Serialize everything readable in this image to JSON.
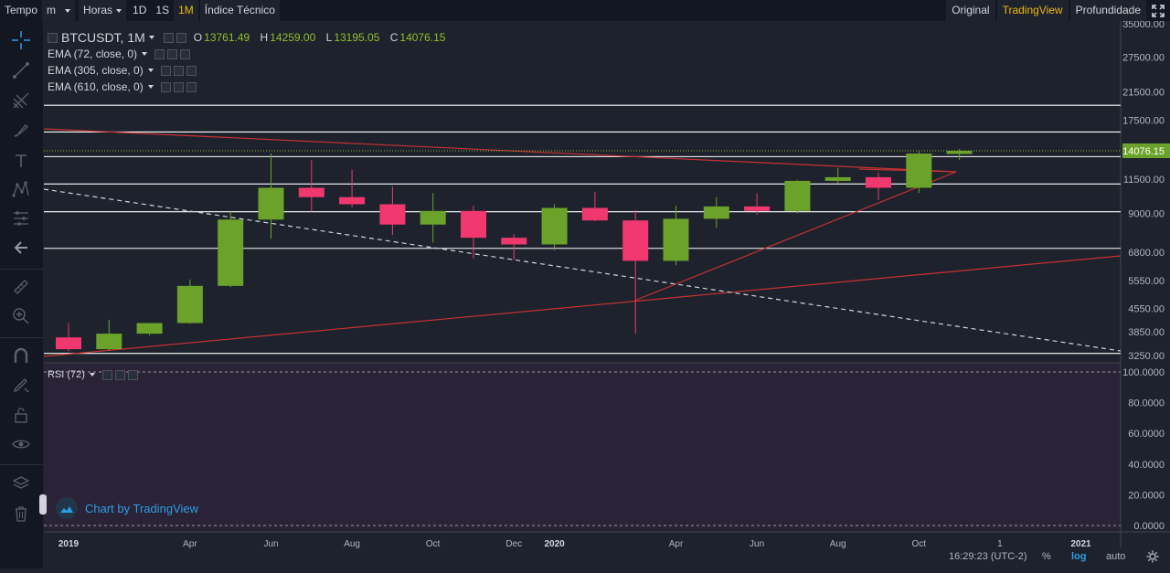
{
  "toolbar": {
    "tempo_label": "Tempo",
    "minutes_value": "m",
    "hours_value": "Horas",
    "intervals": [
      "1D",
      "1S",
      "1M"
    ],
    "active_interval": "1M",
    "indicators_label": "Índice Técnico",
    "views": [
      "Original",
      "TradingView",
      "Profundidade"
    ],
    "active_view": "TradingView"
  },
  "legend": {
    "symbol": "BTCUSDT, 1M",
    "open_label": "O",
    "open": "13761.49",
    "high_label": "H",
    "high": "14259.00",
    "low_label": "L",
    "low": "13195.05",
    "close_label": "C",
    "close": "14076.15",
    "ema1": "EMA (72, close, 0)",
    "ema2": "EMA (305, close, 0)",
    "ema3": "EMA (610, close, 0)",
    "rsi": "RSI (72)"
  },
  "price_axis": {
    "labels": [
      "35000.00",
      "27500.00",
      "21500.00",
      "17500.00",
      "14076.15",
      "11500.00",
      "9000.00",
      "6800.00",
      "5550.00",
      "4550.00",
      "3850.00",
      "3250.00"
    ],
    "current_price": "14076.15"
  },
  "rsi_axis": {
    "labels": [
      "100.0000",
      "80.0000",
      "60.0000",
      "40.0000",
      "20.0000",
      "0.0000"
    ]
  },
  "time_axis": {
    "labels": [
      "2019",
      "Apr",
      "Jun",
      "Aug",
      "Oct",
      "Dec",
      "2020",
      "Apr",
      "Jun",
      "Aug",
      "Oct",
      "1",
      "2021"
    ]
  },
  "status": {
    "clock": "16:29:23 (UTC-2)",
    "percent": "%",
    "log": "log",
    "auto": "auto"
  },
  "watermark": "Chart by TradingView",
  "colors": {
    "up": "#6ba32a",
    "down": "#f0386f",
    "accent": "#f0b90b",
    "trend": "#c93232"
  },
  "chart_data": {
    "type": "candlestick",
    "symbol": "BTCUSDT",
    "interval": "1M",
    "scale": "log",
    "candles": [
      {
        "month": "2019-01",
        "open": 3700,
        "high": 4100,
        "low": 3350,
        "close": 3400
      },
      {
        "month": "2019-02",
        "open": 3400,
        "high": 4200,
        "low": 3370,
        "close": 3800
      },
      {
        "month": "2019-03",
        "open": 3800,
        "high": 4100,
        "low": 3750,
        "close": 4100
      },
      {
        "month": "2019-04",
        "open": 4100,
        "high": 5600,
        "low": 4080,
        "close": 5350
      },
      {
        "month": "2019-05",
        "open": 5350,
        "high": 9100,
        "low": 5300,
        "close": 8600
      },
      {
        "month": "2019-06",
        "open": 8600,
        "high": 13800,
        "low": 7500,
        "close": 10800
      },
      {
        "month": "2019-07",
        "open": 10800,
        "high": 13200,
        "low": 9100,
        "close": 10100
      },
      {
        "month": "2019-08",
        "open": 10100,
        "high": 12300,
        "low": 9400,
        "close": 9600
      },
      {
        "month": "2019-09",
        "open": 9600,
        "high": 10900,
        "low": 7700,
        "close": 8300
      },
      {
        "month": "2019-10",
        "open": 8300,
        "high": 10400,
        "low": 7300,
        "close": 9150
      },
      {
        "month": "2019-11",
        "open": 9150,
        "high": 9500,
        "low": 6500,
        "close": 7550
      },
      {
        "month": "2019-12",
        "open": 7550,
        "high": 7750,
        "low": 6450,
        "close": 7200
      },
      {
        "month": "2020-01",
        "open": 7200,
        "high": 9600,
        "low": 6900,
        "close": 9350
      },
      {
        "month": "2020-02",
        "open": 9350,
        "high": 10500,
        "low": 8500,
        "close": 8550
      },
      {
        "month": "2020-03",
        "open": 8550,
        "high": 9200,
        "low": 3800,
        "close": 6400
      },
      {
        "month": "2020-04",
        "open": 6400,
        "high": 9500,
        "low": 6200,
        "close": 8650
      },
      {
        "month": "2020-05",
        "open": 8650,
        "high": 10100,
        "low": 8100,
        "close": 9450
      },
      {
        "month": "2020-06",
        "open": 9450,
        "high": 10400,
        "low": 8900,
        "close": 9150
      },
      {
        "month": "2020-07",
        "open": 9150,
        "high": 11400,
        "low": 9000,
        "close": 11350
      },
      {
        "month": "2020-08",
        "open": 11350,
        "high": 12450,
        "low": 11150,
        "close": 11650
      },
      {
        "month": "2020-09",
        "open": 11650,
        "high": 12050,
        "low": 9900,
        "close": 10800
      },
      {
        "month": "2020-10",
        "open": 10800,
        "high": 14000,
        "low": 10400,
        "close": 13800
      },
      {
        "month": "2020-11",
        "open": 13761.49,
        "high": 14259.0,
        "low": 13195.05,
        "close": 14076.15
      }
    ],
    "horizontal_levels": [
      19500,
      16100,
      13500,
      11100,
      9100,
      7000,
      3300
    ],
    "rsi_range": [
      0,
      100
    ]
  }
}
